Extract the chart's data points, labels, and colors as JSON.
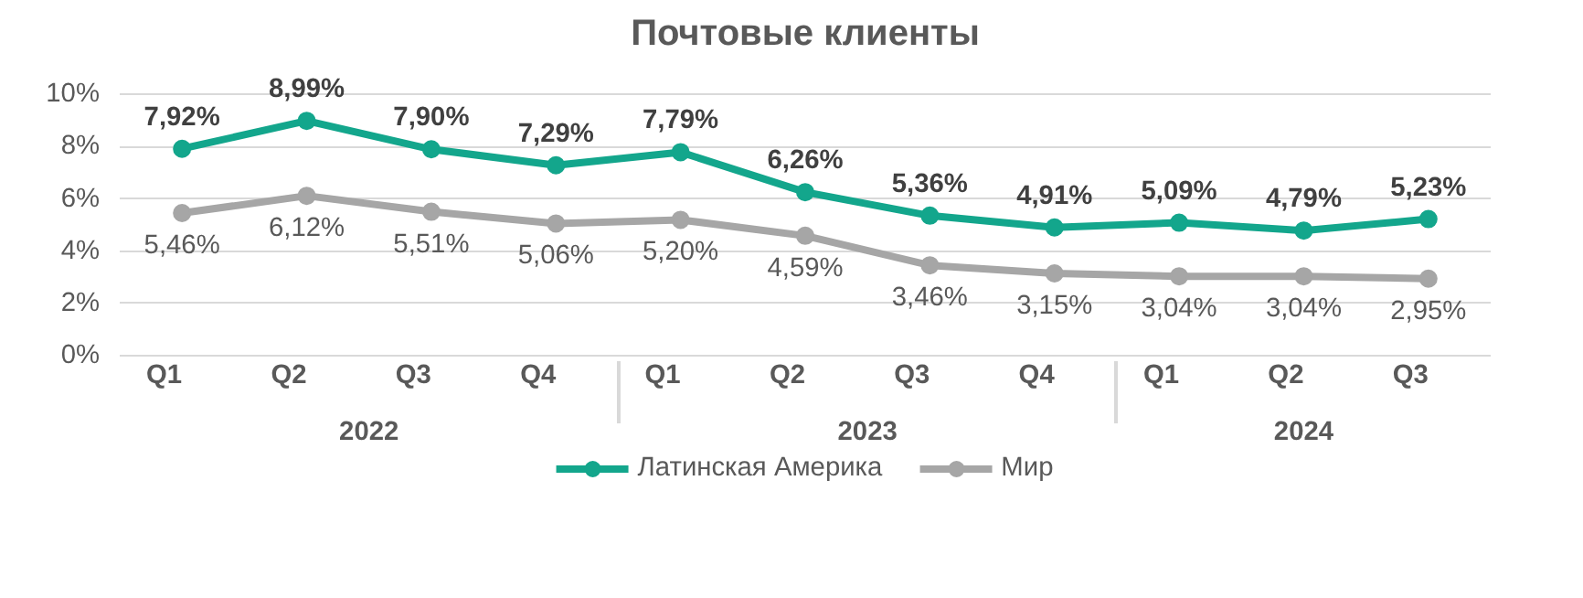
{
  "chart_data": {
    "type": "line",
    "title": "Почтовые клиенты",
    "categories": [
      "Q1",
      "Q2",
      "Q3",
      "Q4",
      "Q1",
      "Q2",
      "Q3",
      "Q4",
      "Q1",
      "Q2",
      "Q3"
    ],
    "annotations": [
      "2022",
      "2023",
      "2024"
    ],
    "series": [
      {
        "name": "Латинская Америка",
        "color": "#13a68c",
        "values": [
          7.92,
          8.99,
          7.9,
          7.29,
          7.79,
          6.26,
          5.36,
          4.91,
          5.09,
          4.79,
          5.23
        ],
        "value_labels": [
          "7,92%",
          "8,99%",
          "7,90%",
          "7,29%",
          "7,79%",
          "6,26%",
          "5,36%",
          "4,91%",
          "5,09%",
          "4,79%",
          "5,23%"
        ]
      },
      {
        "name": "Мир",
        "color": "#a6a6a6",
        "values": [
          5.46,
          6.12,
          5.51,
          5.06,
          5.2,
          4.59,
          3.46,
          3.15,
          3.04,
          3.04,
          2.95
        ],
        "value_labels": [
          "5,46%",
          "6,12%",
          "5,51%",
          "5,06%",
          "5,20%",
          "4,59%",
          "3,46%",
          "3,15%",
          "3,04%",
          "3,04%",
          "2,95%"
        ]
      }
    ],
    "ylim": [
      0,
      10
    ],
    "yticks": [
      {
        "value": 0,
        "label": "0%"
      },
      {
        "value": 2,
        "label": "2%"
      },
      {
        "value": 4,
        "label": "4%"
      },
      {
        "value": 6,
        "label": "6%"
      },
      {
        "value": 8,
        "label": "8%"
      },
      {
        "value": 10,
        "label": "10%"
      }
    ],
    "grid": "y",
    "legend": "bottom",
    "marker": "circle",
    "line_style": "solid"
  }
}
